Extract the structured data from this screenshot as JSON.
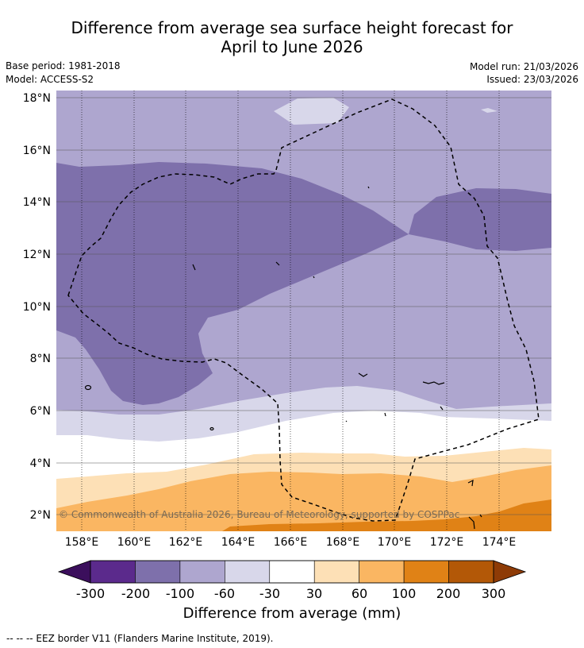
{
  "title_line1": "Difference from average sea surface height forecast for",
  "title_line2": "April to June 2026",
  "base_period": "Base period: 1981-2018",
  "model": "Model: ACCESS-S2",
  "model_run": "Model run: 21/03/2026",
  "issued": "Issued: 23/03/2026",
  "copyright": "© Commonwealth of Australia 2026, Bureau of Meteorology, supported by COSPPac",
  "lat_labels": [
    "18°N",
    "16°N",
    "14°N",
    "12°N",
    "10°N",
    "8°N",
    "6°N",
    "4°N",
    "2°N"
  ],
  "lon_labels": [
    "158°E",
    "160°E",
    "162°E",
    "164°E",
    "166°E",
    "168°E",
    "170°E",
    "172°E",
    "174°E"
  ],
  "colorbar": {
    "ticks": [
      "-300",
      "-200",
      "-100",
      "-60",
      "-30",
      "30",
      "60",
      "100",
      "200",
      "300"
    ],
    "colors": [
      "#5b2a8c",
      "#7e70ab",
      "#aea6cf",
      "#d8d7ea",
      "#ffffff",
      "#fde0b6",
      "#fab662",
      "#e08216",
      "#b35807"
    ],
    "under_color": "#3b0f5c",
    "over_color": "#8e3b06",
    "title": "Difference from average (mm)"
  },
  "footer": "--  --  -- EEZ border V11 (Flanders Marine Institute, 2019)."
}
